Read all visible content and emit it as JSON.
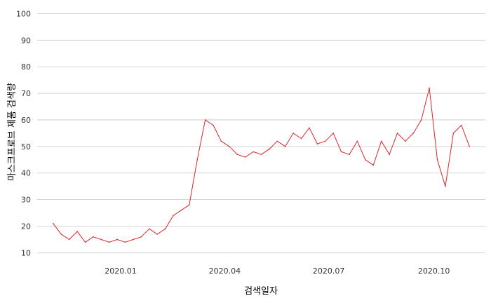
{
  "chart_data": {
    "type": "line",
    "title": "",
    "xlabel": "검색일자",
    "ylabel": "마스크프로브 제품 검색량",
    "ylim": [
      8,
      103
    ],
    "xlim": [
      "2019-10-20",
      "2020-11-15"
    ],
    "y_ticks": [
      10,
      20,
      30,
      40,
      50,
      60,
      70,
      80,
      90,
      100
    ],
    "x_ticks": [
      {
        "date": "2020-01-01",
        "label": "2020.01"
      },
      {
        "date": "2020-04-01",
        "label": "2020.04"
      },
      {
        "date": "2020-07-01",
        "label": "2020.07"
      },
      {
        "date": "2020-10-01",
        "label": "2020.10"
      }
    ],
    "grid": "horizontal",
    "legend": "none",
    "colors": {
      "series": "#d9262b",
      "grid": "#c8c8c8",
      "text": "#333333"
    },
    "series": [
      {
        "x": [
          "2019-11-03",
          "2019-11-10",
          "2019-11-17",
          "2019-11-24",
          "2019-12-01",
          "2019-12-08",
          "2019-12-15",
          "2019-12-22",
          "2019-12-29",
          "2020-01-05",
          "2020-01-12",
          "2020-01-19",
          "2020-01-26",
          "2020-02-02",
          "2020-02-09",
          "2020-02-16",
          "2020-02-23",
          "2020-03-01",
          "2020-03-08",
          "2020-03-15",
          "2020-03-22",
          "2020-03-29",
          "2020-04-05",
          "2020-04-12",
          "2020-04-19",
          "2020-04-26",
          "2020-05-03",
          "2020-05-10",
          "2020-05-17",
          "2020-05-24",
          "2020-05-31",
          "2020-06-07",
          "2020-06-14",
          "2020-06-21",
          "2020-06-28",
          "2020-07-05",
          "2020-07-12",
          "2020-07-19",
          "2020-07-26",
          "2020-08-02",
          "2020-08-09",
          "2020-08-16",
          "2020-08-23",
          "2020-08-30",
          "2020-09-06",
          "2020-09-13",
          "2020-09-20",
          "2020-09-27",
          "2020-10-04",
          "2020-10-11",
          "2020-10-18",
          "2020-10-25",
          "2020-11-01"
        ],
        "values": [
          21,
          17,
          15,
          18,
          14,
          16,
          15,
          14,
          15,
          14,
          15,
          16,
          19,
          17,
          19,
          24,
          26,
          28,
          45,
          60,
          58,
          52,
          50,
          47,
          46,
          48,
          47,
          49,
          52,
          50,
          55,
          53,
          57,
          51,
          52,
          55,
          48,
          47,
          52,
          45,
          43,
          52,
          47,
          55,
          52,
          55,
          60,
          72,
          45,
          35,
          55,
          58,
          50
        ]
      }
    ]
  }
}
